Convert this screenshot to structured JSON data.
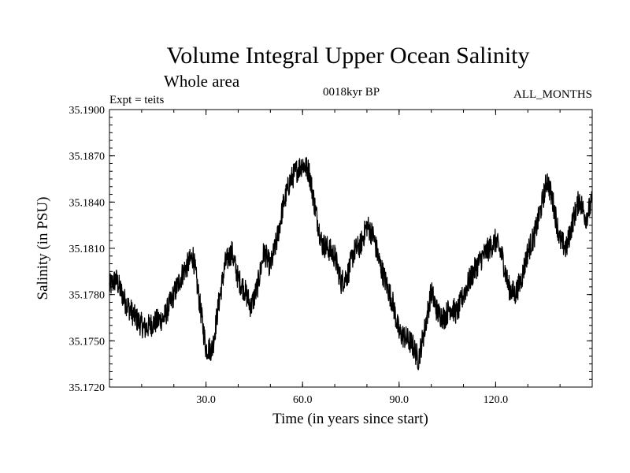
{
  "chart_data": {
    "type": "line",
    "title": "Volume Integral Upper Ocean Salinity",
    "subtitle": "Whole area",
    "header_left": "Expt = teits",
    "header_center": "0018kyr BP",
    "header_right": "ALL_MONTHS",
    "xlabel": "Time (in years since start)",
    "ylabel": "Salinity (in PSU)",
    "xlim": [
      0,
      150
    ],
    "ylim": [
      35.172,
      35.19
    ],
    "x_ticks": [
      30,
      60,
      90,
      120
    ],
    "x_tick_labels": [
      "30.0",
      "60.0",
      "90.0",
      "120.0"
    ],
    "y_ticks": [
      35.172,
      35.175,
      35.178,
      35.181,
      35.184,
      35.187,
      35.19
    ],
    "y_tick_labels": [
      "35.1720",
      "35.1750",
      "35.1780",
      "35.1810",
      "35.1840",
      "35.1870",
      "35.1900"
    ],
    "series": [
      {
        "name": "Salinity",
        "color": "#000000",
        "noise_amplitude": 0.0008,
        "x": [
          0,
          2,
          5,
          8,
          11,
          14,
          17,
          20,
          23,
          26,
          28,
          30,
          32,
          34,
          36,
          38,
          40,
          42,
          44,
          46,
          48,
          50,
          52,
          54,
          56,
          58,
          60,
          62,
          64,
          66,
          68,
          70,
          72,
          74,
          76,
          78,
          80,
          82,
          84,
          86,
          88,
          90,
          92,
          94,
          96,
          98,
          100,
          102,
          104,
          106,
          108,
          110,
          112,
          114,
          116,
          118,
          120,
          122,
          124,
          126,
          128,
          130,
          132,
          134,
          136,
          138,
          140,
          142,
          144,
          146,
          148,
          150
        ],
        "values": [
          35.1785,
          35.179,
          35.1775,
          35.1765,
          35.1758,
          35.1762,
          35.1765,
          35.178,
          35.1795,
          35.1805,
          35.1775,
          35.1745,
          35.1745,
          35.1775,
          35.18,
          35.1808,
          35.179,
          35.1783,
          35.1772,
          35.1785,
          35.1808,
          35.1798,
          35.1815,
          35.1838,
          35.1853,
          35.186,
          35.1865,
          35.186,
          35.1835,
          35.1813,
          35.181,
          35.1805,
          35.1788,
          35.1793,
          35.1808,
          35.1812,
          35.1825,
          35.1818,
          35.18,
          35.1787,
          35.1775,
          35.1755,
          35.1752,
          35.1748,
          35.1738,
          35.1758,
          35.1782,
          35.1768,
          35.1765,
          35.1772,
          35.1768,
          35.178,
          35.179,
          35.1798,
          35.1805,
          35.181,
          35.1815,
          35.1805,
          35.1785,
          35.178,
          35.179,
          35.1808,
          35.1818,
          35.1835,
          35.1855,
          35.1838,
          35.1815,
          35.181,
          35.1828,
          35.1842,
          35.183,
          35.184
        ]
      }
    ]
  }
}
